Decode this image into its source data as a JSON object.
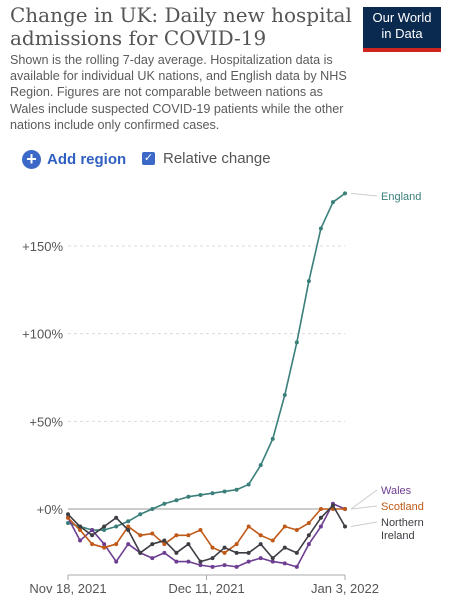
{
  "header": {
    "title": "Change in UK: Daily new hospital admissions for COVID-19",
    "subtitle": "Shown is the rolling 7-day average. Hospitalization data is available for individual UK nations, and English data by NHS Region. Figures are not comparable between nations as Wales include suspected COVID-19 patients while the other nations include only confirmed cases.",
    "logo_line1": "Our World",
    "logo_line2": "in Data"
  },
  "controls": {
    "add_region_label": "Add region",
    "relative_change_label": "Relative change",
    "relative_change_checked": true
  },
  "chart_data": {
    "type": "line",
    "title": "Change in UK: Daily new hospital admissions for COVID-19",
    "xlabel": "",
    "ylabel": "",
    "x_ticks": [
      "Nov 18, 2021",
      "Dec 11, 2021",
      "Jan 3, 2022"
    ],
    "y_ticks": [
      "+0%",
      "+50%",
      "+100%",
      "+150%"
    ],
    "ylim": [
      -35,
      185
    ],
    "grid": "horizontal dotted",
    "x": [
      "2021-11-18",
      "2021-11-20",
      "2021-11-22",
      "2021-11-24",
      "2021-11-26",
      "2021-11-28",
      "2021-11-30",
      "2021-12-02",
      "2021-12-04",
      "2021-12-06",
      "2021-12-08",
      "2021-12-10",
      "2021-12-12",
      "2021-12-14",
      "2021-12-16",
      "2021-12-18",
      "2021-12-20",
      "2021-12-22",
      "2021-12-24",
      "2021-12-26",
      "2021-12-28",
      "2021-12-30",
      "2022-01-01",
      "2022-01-03"
    ],
    "series": [
      {
        "name": "England",
        "color": "#3a7f7a",
        "values": [
          -8,
          -10,
          -12,
          -12,
          -10,
          -7,
          -3,
          0,
          3,
          5,
          7,
          8,
          9,
          10,
          11,
          14,
          25,
          40,
          65,
          95,
          130,
          160,
          175,
          180
        ]
      },
      {
        "name": "Wales",
        "color": "#6d3e91",
        "values": [
          -5,
          -18,
          -12,
          -20,
          -30,
          -20,
          -25,
          -28,
          -25,
          -30,
          -30,
          -32,
          -33,
          -32,
          -33,
          -30,
          -28,
          -30,
          -31,
          -33,
          -20,
          -10,
          3,
          0
        ]
      },
      {
        "name": "Scotland",
        "color": "#c05917",
        "values": [
          -5,
          -12,
          -20,
          -22,
          -20,
          -10,
          -15,
          -14,
          -20,
          -15,
          -15,
          -12,
          -22,
          -25,
          -20,
          -10,
          -15,
          -18,
          -10,
          -12,
          -8,
          0,
          0,
          0
        ]
      },
      {
        "name": "Northern Ireland",
        "color": "#3d3d44",
        "values": [
          -3,
          -10,
          -15,
          -10,
          -5,
          -12,
          -25,
          -20,
          -18,
          -25,
          -20,
          -30,
          -28,
          -22,
          -25,
          -25,
          -20,
          -28,
          -22,
          -25,
          -15,
          -5,
          2,
          -10
        ]
      }
    ]
  }
}
